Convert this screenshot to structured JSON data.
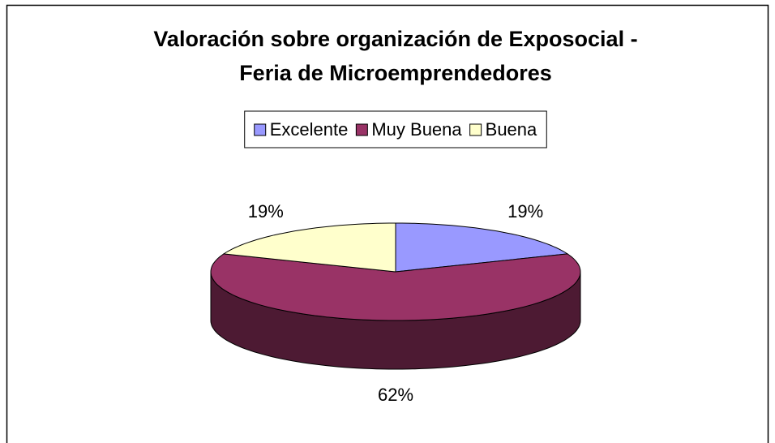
{
  "chart_data": {
    "type": "pie3d",
    "title": [
      "Valoración sobre organización de Exposocial -",
      "Feria de Microemprendedores"
    ],
    "categories": [
      "Excelente",
      "Muy Buena",
      "Buena"
    ],
    "series": [
      {
        "values": [
          19,
          62,
          19
        ],
        "value_labels": [
          "19%",
          "62%",
          "19%"
        ],
        "colors": [
          "#9999ff",
          "#993366",
          "#ffffcc"
        ]
      }
    ],
    "legend": "top"
  }
}
